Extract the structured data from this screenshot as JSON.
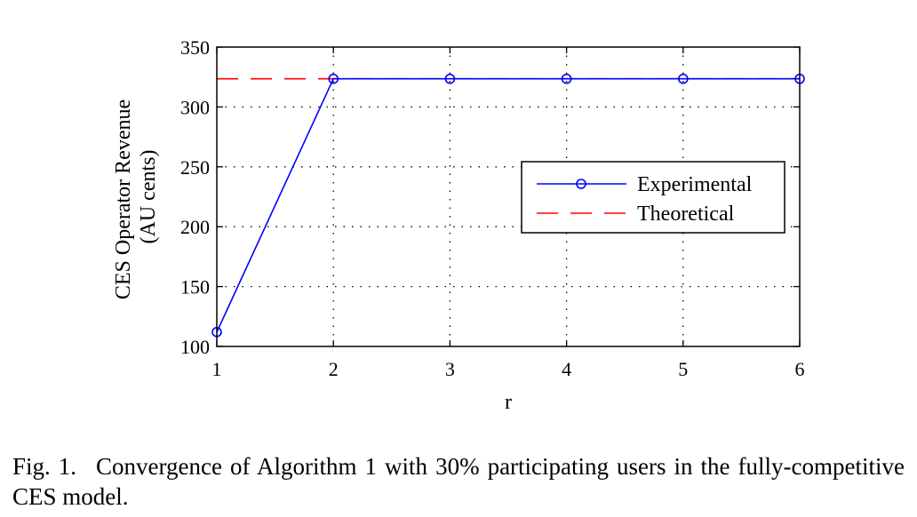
{
  "chart_data": {
    "type": "line",
    "xlabel": "r",
    "ylabel_line1": "CES Operator Revenue",
    "ylabel_line2": "(AU cents)",
    "xlim": [
      1,
      6
    ],
    "ylim": [
      100,
      350
    ],
    "x_ticks": [
      "1",
      "2",
      "3",
      "4",
      "5",
      "6"
    ],
    "y_ticks": [
      "100",
      "150",
      "200",
      "250",
      "300",
      "350"
    ],
    "grid": true,
    "legend_position": "right",
    "x": [
      1,
      2,
      3,
      4,
      5,
      6
    ],
    "series": [
      {
        "name": "Experimental",
        "values": [
          112,
          323.5,
          323.5,
          323.5,
          323.5,
          323.5
        ],
        "color": "#0000ff",
        "marker": "circle",
        "style": "solid"
      },
      {
        "name": "Theoretical",
        "values": [
          323.5,
          323.5,
          323.5,
          323.5,
          323.5,
          323.5
        ],
        "color": "#ff0000",
        "style": "dashed"
      }
    ]
  },
  "caption": {
    "label": "Fig. 1.",
    "text": "Convergence of Algorithm 1 with 30% participating users in the fully-competitive CES model."
  }
}
